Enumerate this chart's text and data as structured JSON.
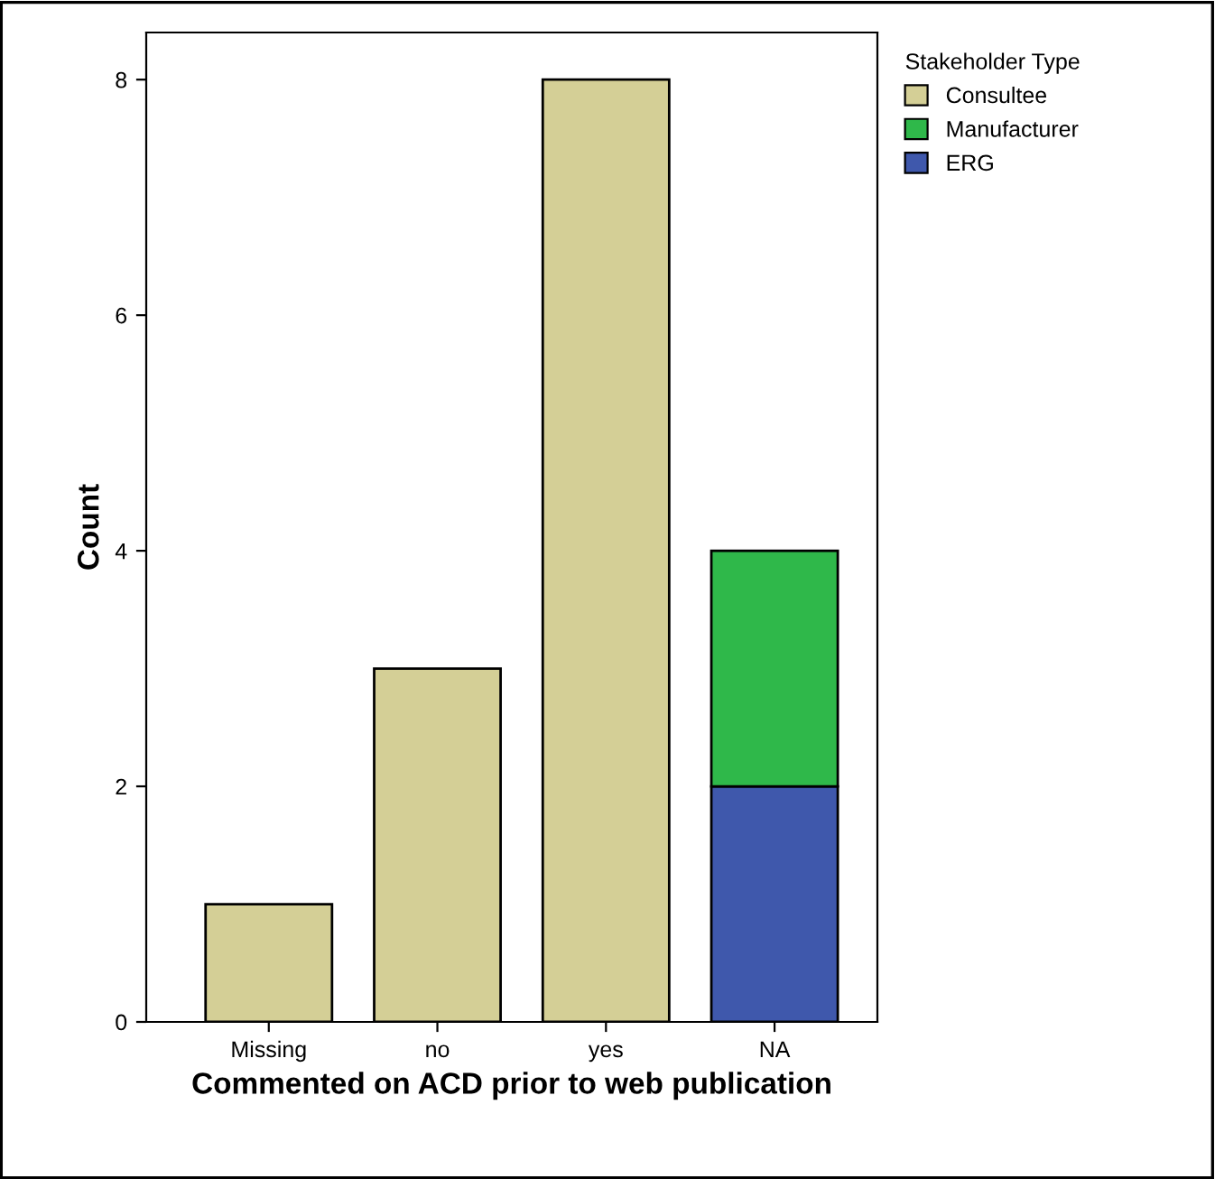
{
  "chart_data": {
    "type": "bar",
    "stacked": true,
    "xlabel": "Commented on ACD prior to web publication",
    "ylabel": "Count",
    "legend_title": "Stakeholder Type",
    "categories": [
      "Missing",
      "no",
      "yes",
      "NA"
    ],
    "series": [
      {
        "name": "ERG",
        "color": "#3f58ac",
        "values": [
          null,
          null,
          null,
          2
        ]
      },
      {
        "name": "Manufacturer",
        "color": "#2fb84a",
        "values": [
          null,
          null,
          null,
          2
        ]
      },
      {
        "name": "Consultee",
        "color": "#d4cf96",
        "values": [
          1,
          3,
          8,
          null
        ]
      }
    ],
    "ylim": [
      0,
      8.4
    ],
    "yticks": [
      0,
      2,
      4,
      6,
      8
    ],
    "grid": false,
    "legend": "top right"
  }
}
